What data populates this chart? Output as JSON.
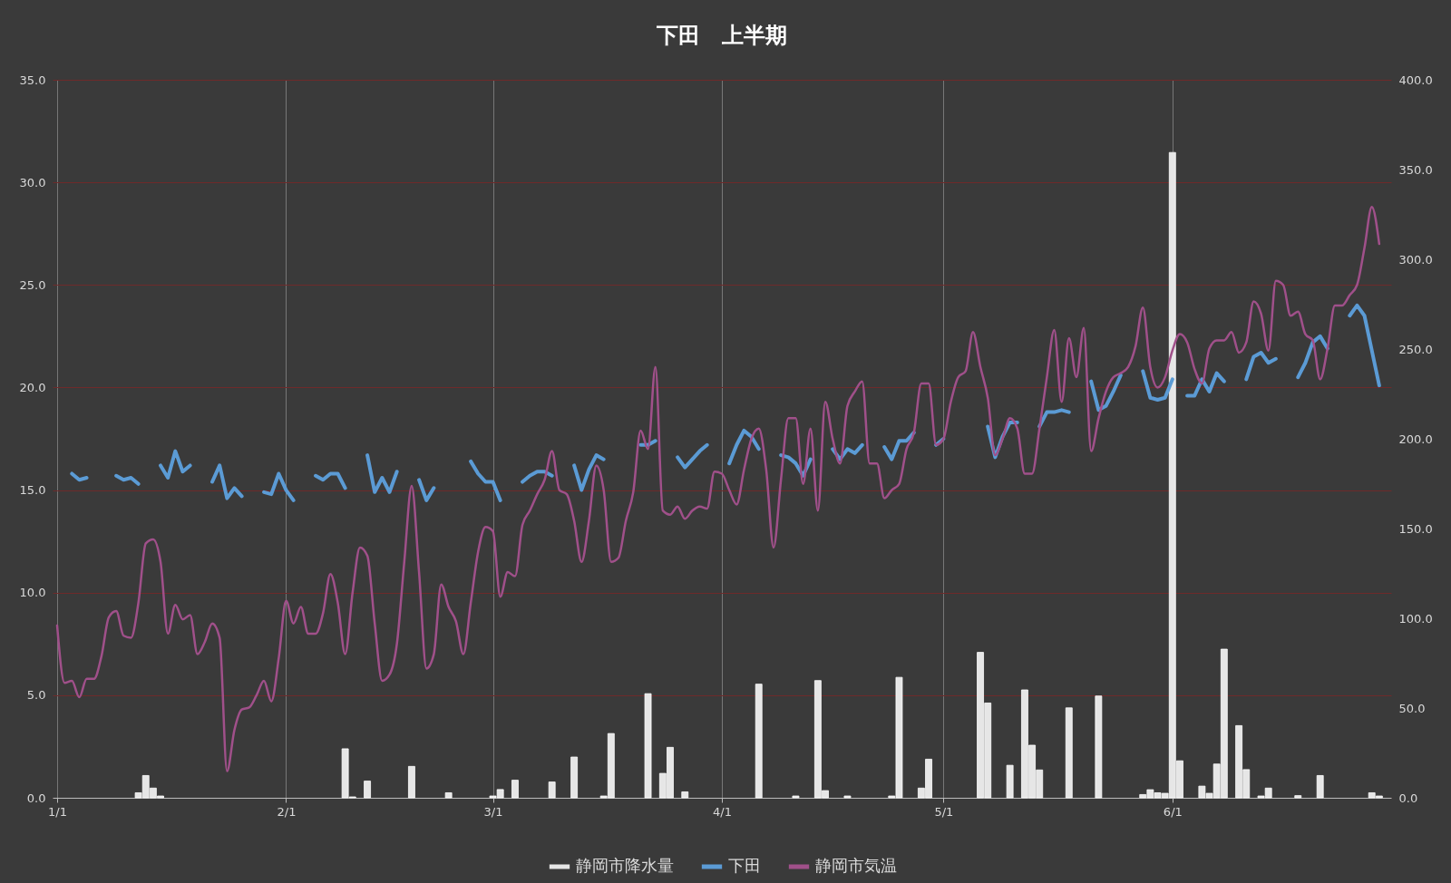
{
  "chart_data": {
    "type": "line",
    "title": "下田　上半期",
    "legend": "bottom",
    "grid": true,
    "x": [
      "--01-01",
      "--01-02",
      "--01-03",
      "--01-04",
      "--01-05",
      "--01-06",
      "--01-07",
      "--01-08",
      "--01-09",
      "--01-10",
      "--01-11",
      "--01-12",
      "--01-13",
      "--01-14",
      "--01-15",
      "--01-16",
      "--01-17",
      "--01-18",
      "--01-19",
      "--01-20",
      "--01-21",
      "--01-22",
      "--01-23",
      "--01-24",
      "--01-25",
      "--01-26",
      "--01-27",
      "--01-28",
      "--01-29",
      "--01-30",
      "--01-31",
      "--02-01",
      "--02-02",
      "--02-03",
      "--02-04",
      "--02-05",
      "--02-06",
      "--02-07",
      "--02-08",
      "--02-09",
      "--02-10",
      "--02-11",
      "--02-12",
      "--02-13",
      "--02-14",
      "--02-15",
      "--02-16",
      "--02-17",
      "--02-18",
      "--02-19",
      "--02-20",
      "--02-21",
      "--02-22",
      "--02-23",
      "--02-24",
      "--02-25",
      "--02-26",
      "--02-27",
      "--02-28",
      "--03-01",
      "--03-02",
      "--03-03",
      "--03-04",
      "--03-05",
      "--03-06",
      "--03-07",
      "--03-08",
      "--03-09",
      "--03-10",
      "--03-11",
      "--03-12",
      "--03-13",
      "--03-14",
      "--03-15",
      "--03-16",
      "--03-17",
      "--03-18",
      "--03-19",
      "--03-20",
      "--03-21",
      "--03-22",
      "--03-23",
      "--03-24",
      "--03-25",
      "--03-26",
      "--03-27",
      "--03-28",
      "--03-29",
      "--03-30",
      "--03-31",
      "--04-01",
      "--04-02",
      "--04-03",
      "--04-04",
      "--04-05",
      "--04-06",
      "--04-07",
      "--04-08",
      "--04-09",
      "--04-10",
      "--04-11",
      "--04-12",
      "--04-13",
      "--04-14",
      "--04-15",
      "--04-16",
      "--04-17",
      "--04-18",
      "--04-19",
      "--04-20",
      "--04-21",
      "--04-22",
      "--04-23",
      "--04-24",
      "--04-25",
      "--04-26",
      "--04-27",
      "--04-28",
      "--04-29",
      "--04-30",
      "--05-01",
      "--05-02",
      "--05-03",
      "--05-04",
      "--05-05",
      "--05-06",
      "--05-07",
      "--05-08",
      "--05-09",
      "--05-10",
      "--05-11",
      "--05-12",
      "--05-13",
      "--05-14",
      "--05-15",
      "--05-16",
      "--05-17",
      "--05-18",
      "--05-19",
      "--05-20",
      "--05-21",
      "--05-22",
      "--05-23",
      "--05-24",
      "--05-25",
      "--05-26",
      "--05-27",
      "--05-28",
      "--05-29",
      "--05-30",
      "--05-31",
      "--06-01",
      "--06-02",
      "--06-03",
      "--06-04",
      "--06-05",
      "--06-06",
      "--06-07",
      "--06-08",
      "--06-09",
      "--06-10",
      "--06-11",
      "--06-12",
      "--06-13",
      "--06-14",
      "--06-15",
      "--06-16",
      "--06-17",
      "--06-18",
      "--06-19",
      "--06-20",
      "--06-21",
      "--06-22",
      "--06-23",
      "--06-24",
      "--06-25",
      "--06-26",
      "--06-27",
      "--06-28",
      "--06-29"
    ],
    "xlim": [
      "--01-01",
      "--06-30"
    ],
    "xticks": [
      {
        "value": "--01-01",
        "label": "1/1"
      },
      {
        "value": "--02-01",
        "label": "2/1"
      },
      {
        "value": "--03-01",
        "label": "3/1"
      },
      {
        "value": "--04-01",
        "label": "4/1"
      },
      {
        "value": "--05-01",
        "label": "5/1"
      },
      {
        "value": "--06-01",
        "label": "6/1"
      }
    ],
    "ylim": [
      0,
      35
    ],
    "yticks": [
      {
        "value": 0,
        "label": "0.0"
      },
      {
        "value": 5,
        "label": "5.0"
      },
      {
        "value": 10,
        "label": "10.0"
      },
      {
        "value": 15,
        "label": "15.0"
      },
      {
        "value": 20,
        "label": "20.0"
      },
      {
        "value": 25,
        "label": "25.0"
      },
      {
        "value": 30,
        "label": "30.0"
      },
      {
        "value": 35,
        "label": "35.0"
      }
    ],
    "y2lim": [
      0,
      400
    ],
    "y2ticks": [
      {
        "value": 0,
        "label": "0.0"
      },
      {
        "value": 50,
        "label": "50.0"
      },
      {
        "value": 100,
        "label": "100.0"
      },
      {
        "value": 150,
        "label": "150.0"
      },
      {
        "value": 200,
        "label": "200.0"
      },
      {
        "value": 250,
        "label": "250.0"
      },
      {
        "value": 300,
        "label": "300.0"
      },
      {
        "value": 350,
        "label": "350.0"
      },
      {
        "value": 400,
        "label": "400.0"
      }
    ],
    "series": [
      {
        "name": "静岡市降水量",
        "type": "bar",
        "axis": "y2",
        "color": "#e6e6e6",
        "values": [
          null,
          null,
          null,
          null,
          null,
          null,
          null,
          null,
          null,
          null,
          null,
          2.8,
          12.4,
          5.4,
          1.0,
          null,
          null,
          null,
          null,
          null,
          null,
          null,
          null,
          null,
          null,
          null,
          null,
          null,
          null,
          null,
          null,
          null,
          null,
          null,
          null,
          null,
          null,
          null,
          null,
          27.3,
          0.5,
          null,
          9.3,
          null,
          null,
          null,
          null,
          null,
          17.5,
          null,
          null,
          null,
          null,
          2.8,
          null,
          null,
          null,
          null,
          null,
          1.0,
          4.6,
          null,
          9.8,
          null,
          null,
          null,
          null,
          8.8,
          null,
          null,
          22.7,
          null,
          null,
          null,
          1.0,
          35.8,
          null,
          null,
          null,
          null,
          58,
          null,
          13.6,
          28.1,
          null,
          3.3,
          null,
          null,
          null,
          null,
          null,
          null,
          null,
          null,
          null,
          63.3,
          null,
          null,
          null,
          null,
          1.0,
          null,
          null,
          65.3,
          4.0,
          null,
          null,
          1.0,
          null,
          null,
          null,
          null,
          null,
          1.0,
          67.1,
          null,
          null,
          5.4,
          21.5,
          null,
          null,
          null,
          null,
          null,
          null,
          81,
          52.8,
          null,
          null,
          18.1,
          null,
          60.1,
          29.3,
          15.5,
          null,
          null,
          null,
          50.1,
          null,
          null,
          null,
          56.7,
          null,
          null,
          null,
          null,
          null,
          1.8,
          4.5,
          2.8,
          2.5,
          359.5,
          20.6,
          null,
          null,
          6.5,
          2.5,
          18.8,
          82.8,
          null,
          40.2,
          15.7,
          null,
          1.0,
          5.4,
          null,
          null,
          null,
          1.2,
          null,
          null,
          12.4,
          null,
          null,
          null,
          null,
          null,
          null,
          2.8,
          1.0
        ]
      },
      {
        "name": "下田",
        "color": "#5b9bd5",
        "values": [
          null,
          null,
          15.8,
          15.5,
          15.6,
          null,
          null,
          null,
          15.7,
          15.5,
          15.6,
          15.3,
          null,
          null,
          16.2,
          15.6,
          16.9,
          15.9,
          16.2,
          null,
          null,
          15.4,
          16.2,
          14.6,
          15.1,
          14.7,
          null,
          null,
          14.9,
          14.8,
          15.8,
          15.0,
          14.5,
          null,
          null,
          15.7,
          15.5,
          15.8,
          15.8,
          15.1,
          null,
          null,
          16.7,
          14.9,
          15.6,
          14.9,
          15.9,
          null,
          null,
          15.5,
          14.5,
          15.1,
          null,
          null,
          null,
          null,
          16.4,
          15.8,
          15.4,
          15.4,
          14.5,
          null,
          null,
          15.4,
          15.7,
          15.9,
          15.9,
          15.7,
          null,
          null,
          16.2,
          15.0,
          16.0,
          16.7,
          16.5,
          null,
          null,
          null,
          null,
          17.2,
          17.2,
          17.4,
          null,
          null,
          16.6,
          16.1,
          16.5,
          16.9,
          17.2,
          null,
          null,
          16.3,
          17.2,
          17.9,
          17.6,
          17.0,
          null,
          null,
          16.7,
          16.6,
          16.3,
          15.7,
          16.5,
          null,
          null,
          17.0,
          16.5,
          17.0,
          16.8,
          17.2,
          null,
          null,
          17.1,
          16.5,
          17.4,
          17.4,
          17.8,
          null,
          null,
          17.2,
          17.5,
          null,
          null,
          null,
          null,
          null,
          18.1,
          16.6,
          17.6,
          18.3,
          18.3,
          null,
          null,
          18.1,
          18.8,
          18.8,
          18.9,
          18.8,
          null,
          null,
          20.3,
          18.9,
          19.1,
          19.8,
          20.6,
          null,
          null,
          20.8,
          19.5,
          19.4,
          19.5,
          20.4,
          null,
          19.6,
          19.6,
          20.4,
          19.8,
          20.7,
          20.3,
          null,
          null,
          20.4,
          21.5,
          21.7,
          21.2,
          21.4,
          null,
          null,
          20.5,
          21.2,
          22.2,
          22.5,
          21.9,
          null,
          null,
          23.5,
          24.0,
          23.5,
          21.8,
          20.1
        ]
      },
      {
        "name": "静岡市気温",
        "color": "#a0508a",
        "values": [
          8.4,
          5.6,
          5.7,
          4.9,
          5.8,
          5.8,
          6.9,
          8.8,
          9.1,
          7.9,
          7.8,
          9.5,
          12.4,
          12.6,
          11.5,
          8.0,
          9.4,
          8.7,
          8.9,
          7.0,
          7.6,
          8.5,
          7.8,
          1.3,
          3.3,
          4.3,
          4.4,
          5.0,
          5.7,
          4.7,
          6.8,
          9.6,
          8.5,
          9.3,
          8.0,
          8.0,
          9.0,
          10.9,
          9.5,
          7.0,
          10.0,
          12.2,
          11.8,
          8.5,
          5.7,
          6.0,
          7.5,
          11.5,
          15.2,
          11.0,
          6.3,
          7.0,
          10.4,
          9.3,
          8.6,
          7.0,
          9.5,
          12.0,
          13.2,
          13.0,
          9.8,
          11.0,
          10.8,
          13.3,
          14.0,
          14.8,
          15.5,
          16.9,
          15.0,
          14.8,
          13.5,
          11.5,
          13.5,
          16.2,
          15.0,
          11.5,
          11.7,
          13.5,
          14.9,
          17.9,
          17.0,
          21.0,
          14.0,
          13.8,
          14.2,
          13.6,
          14.0,
          14.2,
          14.1,
          15.9,
          15.8,
          15.0,
          14.3,
          16.0,
          17.5,
          18.0,
          16.0,
          12.2,
          15.5,
          18.5,
          18.5,
          15.3,
          18.0,
          14.0,
          19.3,
          17.5,
          16.3,
          19.1,
          19.8,
          20.3,
          16.3,
          16.3,
          14.6,
          15.0,
          15.3,
          17.0,
          17.8,
          20.2,
          20.2,
          17.2,
          17.5,
          19.3,
          20.5,
          20.8,
          22.7,
          21.0,
          19.5,
          16.7,
          17.5,
          18.5,
          18.0,
          15.8,
          15.8,
          18.0,
          20.5,
          22.8,
          19.3,
          22.4,
          20.5,
          22.9,
          16.9,
          18.5,
          19.8,
          20.5,
          20.7,
          21.0,
          22.0,
          23.9,
          21.0,
          20.0,
          20.5,
          21.8,
          22.6,
          22.2,
          20.9,
          20.2,
          21.9,
          22.3,
          22.3,
          22.7,
          21.7,
          22.2,
          24.2,
          23.6,
          21.8,
          25.2,
          25.0,
          23.5,
          23.7,
          22.6,
          22.3,
          20.4,
          21.9,
          24.0,
          24.0,
          24.5,
          25.0,
          26.8,
          28.8,
          27.0
        ]
      }
    ]
  }
}
